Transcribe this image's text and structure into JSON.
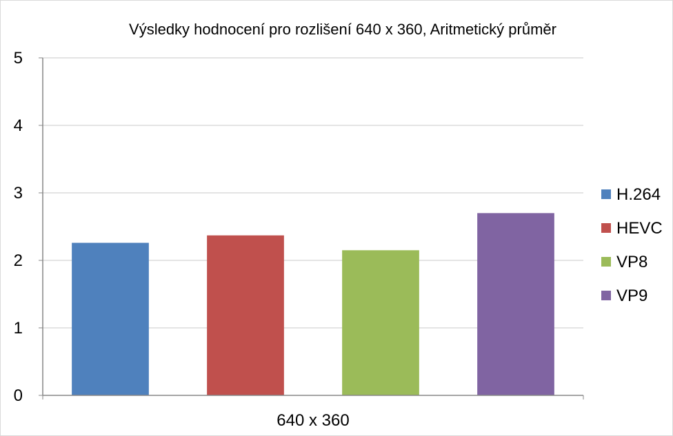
{
  "chart_data": {
    "type": "bar",
    "title": "Výsledky hodnocení pro rozlišení 640 x 360, Aritmetický průměr",
    "xlabel": "",
    "ylabel": "",
    "categories": [
      "640 x 360"
    ],
    "ylim": [
      0,
      5
    ],
    "yticks": [
      "0",
      "1",
      "2",
      "3",
      "4",
      "5"
    ],
    "grid": true,
    "legend_position": "right",
    "series": [
      {
        "name": "H.264",
        "values": [
          2.26
        ],
        "color": "#4F81BD"
      },
      {
        "name": "HEVC",
        "values": [
          2.37
        ],
        "color": "#C0504D"
      },
      {
        "name": "VP8",
        "values": [
          2.15
        ],
        "color": "#9BBB59"
      },
      {
        "name": "VP9",
        "values": [
          2.7
        ],
        "color": "#8064A2"
      }
    ]
  }
}
